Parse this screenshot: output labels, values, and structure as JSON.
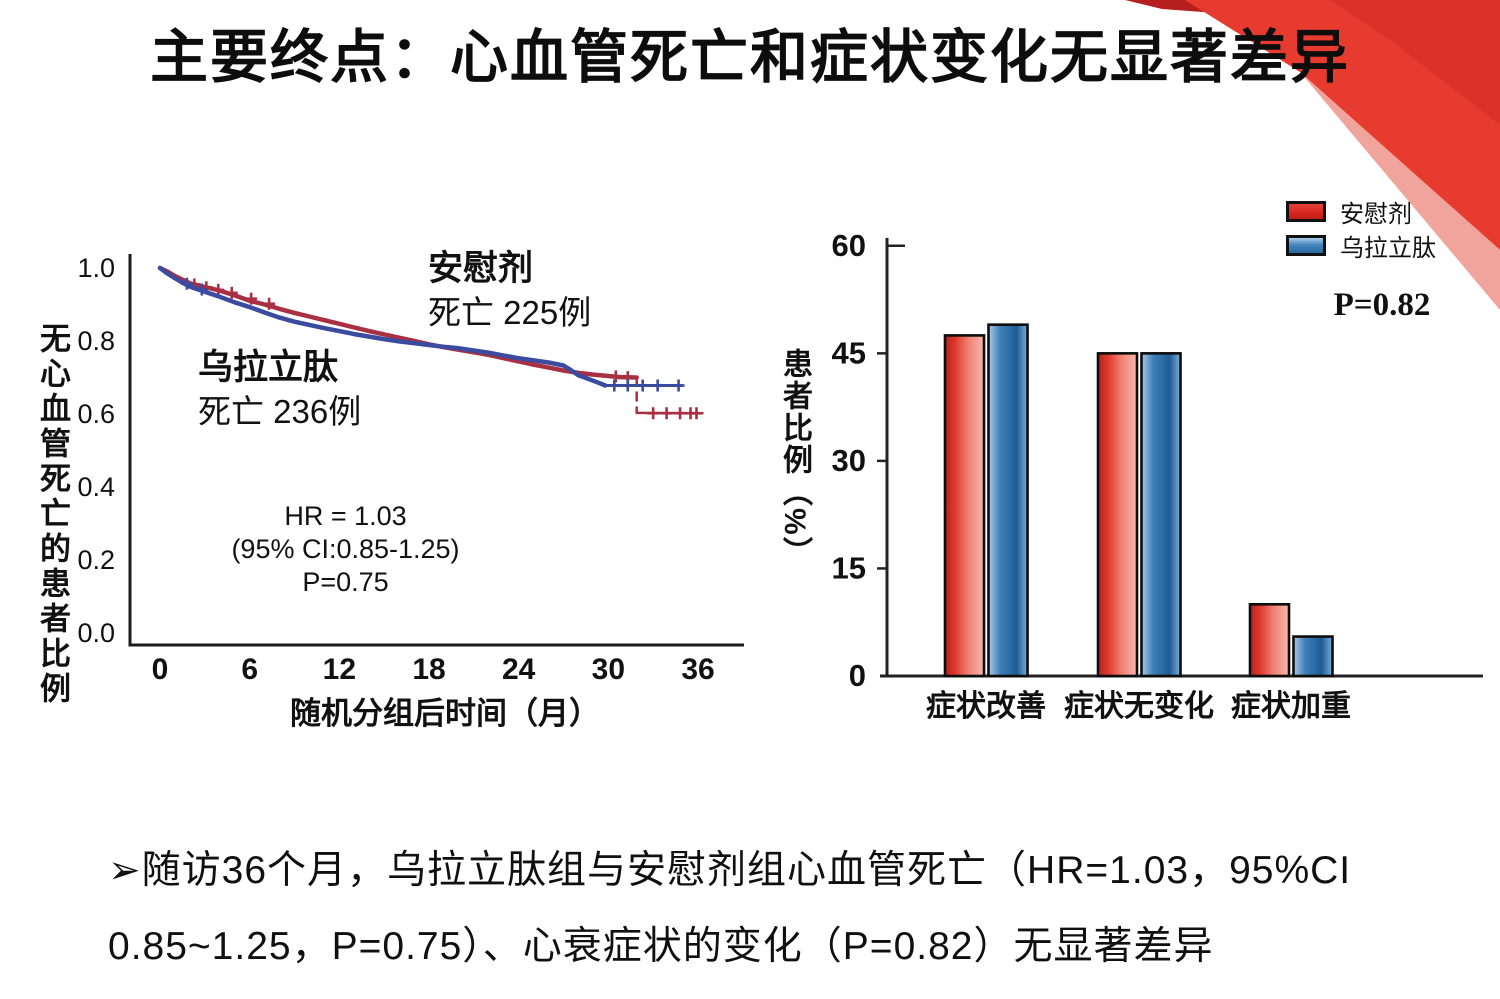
{
  "slide": {
    "title": "主要终点：心血管死亡和症状变化无显著差异",
    "summary": {
      "line1": "➢随访36个月，乌拉立肽组与安慰剂组心血管死亡（HR=1.03，95%CI",
      "line2": "0.85~1.25，P=0.75）、心衰症状的变化（P=0.82）无显著差异"
    },
    "accent_red": "#e8382f"
  },
  "chart_data": [
    {
      "type": "line",
      "subtype": "kaplan-meier",
      "xlabel": "随机分组后时间（月）",
      "ylabel": "无心血管死亡的患者比例",
      "xlim": [
        0,
        36
      ],
      "ylim": [
        0.0,
        1.0
      ],
      "xticks": [
        0,
        6,
        12,
        18,
        24,
        30,
        36
      ],
      "yticks": [
        "1.0",
        "0.8",
        "0.6",
        "0.4",
        "0.2",
        "0.0"
      ],
      "grid": false,
      "annotation": {
        "hr": "HR = 1.03",
        "ci": "(95% CI:0.85-1.25)",
        "p": "P=0.75"
      },
      "series": [
        {
          "name": "安慰剂",
          "deaths_label": "死亡 225例",
          "color": "#a93043",
          "paths": [
            {
              "points": [
                [
                  0,
                  1.0
                ],
                [
                  0.5,
                  0.99
                ],
                [
                  1,
                  0.978
                ],
                [
                  1.5,
                  0.968
                ],
                [
                  2,
                  0.958
                ],
                [
                  3,
                  0.948
                ],
                [
                  4,
                  0.938
                ],
                [
                  5,
                  0.925
                ],
                [
                  6,
                  0.91
                ],
                [
                  7,
                  0.9
                ],
                [
                  8,
                  0.888
                ],
                [
                  9,
                  0.877
                ],
                [
                  10,
                  0.867
                ],
                [
                  11,
                  0.857
                ],
                [
                  12,
                  0.847
                ],
                [
                  13,
                  0.837
                ],
                [
                  14,
                  0.827
                ],
                [
                  15,
                  0.818
                ],
                [
                  16,
                  0.809
                ],
                [
                  17,
                  0.8
                ],
                [
                  18,
                  0.791
                ],
                [
                  19,
                  0.783
                ],
                [
                  20,
                  0.776
                ],
                [
                  21,
                  0.769
                ],
                [
                  22,
                  0.762
                ],
                [
                  23,
                  0.753
                ],
                [
                  24,
                  0.744
                ],
                [
                  25,
                  0.735
                ],
                [
                  26,
                  0.727
                ],
                [
                  27,
                  0.719
                ],
                [
                  28,
                  0.713
                ],
                [
                  29,
                  0.708
                ],
                [
                  30,
                  0.704
                ],
                [
                  30.8,
                  0.701
                ],
                [
                  31.9,
                  0.7
                ]
              ],
              "width": 4.5
            },
            {
              "points": [
                [
                  31.9,
                  0.7
                ],
                [
                  31.9,
                  0.603
                ]
              ],
              "dash": true,
              "width": 2.5
            },
            {
              "points": [
                [
                  31.9,
                  0.603
                ],
                [
                  36.3,
                  0.602
                ]
              ],
              "width": 2.5
            }
          ],
          "censors": [
            [
              2.3,
              0.955
            ],
            [
              3.1,
              0.947
            ],
            [
              3.9,
              0.94
            ],
            [
              4.8,
              0.932
            ],
            [
              6.1,
              0.916
            ],
            [
              7.3,
              0.902
            ],
            [
              30.5,
              0.703
            ],
            [
              31.3,
              0.701
            ],
            [
              33.0,
              0.602
            ],
            [
              33.9,
              0.602
            ],
            [
              34.8,
              0.602
            ],
            [
              35.5,
              0.602
            ],
            [
              35.9,
              0.602
            ]
          ]
        },
        {
          "name": "乌拉立肽",
          "deaths_label": "死亡 236例",
          "color": "#3a4ba0",
          "paths": [
            {
              "points": [
                [
                  0,
                  1.0
                ],
                [
                  0.5,
                  0.985
                ],
                [
                  1,
                  0.972
                ],
                [
                  1.5,
                  0.96
                ],
                [
                  2,
                  0.949
                ],
                [
                  3,
                  0.935
                ],
                [
                  4,
                  0.921
                ],
                [
                  5,
                  0.906
                ],
                [
                  6,
                  0.893
                ],
                [
                  7,
                  0.878
                ],
                [
                  8,
                  0.864
                ],
                [
                  9,
                  0.853
                ],
                [
                  10,
                  0.844
                ],
                [
                  11,
                  0.835
                ],
                [
                  12,
                  0.827
                ],
                [
                  13,
                  0.819
                ],
                [
                  14,
                  0.812
                ],
                [
                  15,
                  0.805
                ],
                [
                  16,
                  0.799
                ],
                [
                  17,
                  0.794
                ],
                [
                  18,
                  0.789
                ],
                [
                  19,
                  0.784
                ],
                [
                  20,
                  0.78
                ],
                [
                  21,
                  0.774
                ],
                [
                  22,
                  0.768
                ],
                [
                  23,
                  0.76
                ],
                [
                  24,
                  0.753
                ],
                [
                  25,
                  0.747
                ],
                [
                  26,
                  0.741
                ],
                [
                  27,
                  0.733
                ],
                [
                  27.5,
                  0.72
                ],
                [
                  28,
                  0.706
                ],
                [
                  28.8,
                  0.694
                ],
                [
                  29.5,
                  0.683
                ],
                [
                  29.8,
                  0.678
                ]
              ],
              "width": 4.5
            },
            {
              "points": [
                [
                  29.8,
                  0.678
                ],
                [
                  34.9,
                  0.678
                ]
              ],
              "width": 3
            }
          ],
          "censors": [
            [
              1.8,
              0.957
            ],
            [
              2.8,
              0.941
            ],
            [
              30.4,
              0.678
            ],
            [
              31.3,
              0.678
            ],
            [
              32.3,
              0.678
            ],
            [
              33.3,
              0.678
            ],
            [
              34.7,
              0.678
            ]
          ]
        }
      ]
    },
    {
      "type": "bar",
      "categories": [
        "症状改善",
        "症状无变化",
        "症状加重"
      ],
      "series": [
        {
          "name": "安慰剂",
          "values": [
            47.5,
            45,
            10
          ],
          "color": "#d8261f"
        },
        {
          "name": "乌拉立肽",
          "values": [
            49,
            45,
            5.5
          ],
          "color": "#3a78b2"
        }
      ],
      "ylabel": "患者比例（%）",
      "ylim": [
        0,
        60
      ],
      "yticks": [
        0,
        15,
        30,
        45,
        60
      ],
      "grid": false,
      "annotation_p": "P=0.82",
      "legend_position": "top-right"
    }
  ]
}
